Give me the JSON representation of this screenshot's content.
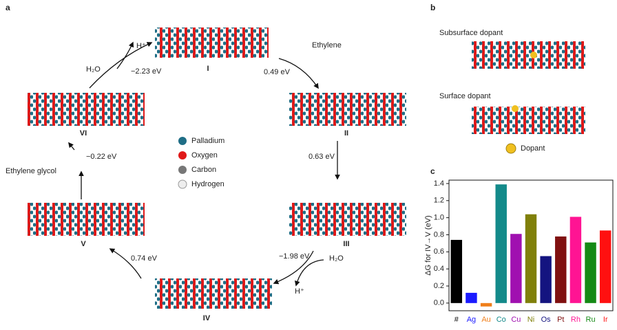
{
  "panel_a": {
    "label": "a",
    "states": [
      "I",
      "II",
      "III",
      "IV",
      "V",
      "VI"
    ],
    "energies": [
      "0.49 eV",
      "0.63 eV",
      "−1.98 eV",
      "0.74 eV",
      "−0.22 eV",
      "−2.23 eV"
    ],
    "species": {
      "ethylene": "Ethylene",
      "water_1": "H₂O",
      "proton_1": "H⁺",
      "water_2": "H₂O",
      "proton_2": "H⁺",
      "glycol": "Ethylene glycol"
    },
    "legend": [
      "Palladium",
      "Oxygen",
      "Carbon",
      "Hydrogen"
    ]
  },
  "panel_b": {
    "label": "b",
    "subsurface": "Subsurface dopant",
    "surface": "Surface dopant",
    "dopant": "Dopant"
  },
  "chart_data": {
    "type": "bar",
    "label": "c",
    "ylabel": "ΔG for IV→V (eV)",
    "categories": [
      "#",
      "Ag",
      "Au",
      "Co",
      "Cu",
      "Ni",
      "Os",
      "Pt",
      "Rh",
      "Ru",
      "Ir"
    ],
    "values": [
      0.74,
      0.12,
      -0.04,
      1.39,
      0.81,
      1.04,
      0.55,
      0.78,
      1.01,
      0.71,
      0.85
    ],
    "colors": [
      "#000000",
      "#1a1aff",
      "#f07f1a",
      "#138a8a",
      "#a010b0",
      "#80800a",
      "#141480",
      "#801010",
      "#ff1493",
      "#158a15",
      "#ff1010"
    ],
    "ylim": [
      -0.09,
      1.44
    ],
    "yticks": [
      {
        "value": 0,
        "label": "0.0"
      },
      0.2,
      0.4,
      0.6,
      0.8,
      {
        "value": 1,
        "label": "1.0"
      },
      1.2,
      1.4
    ]
  }
}
